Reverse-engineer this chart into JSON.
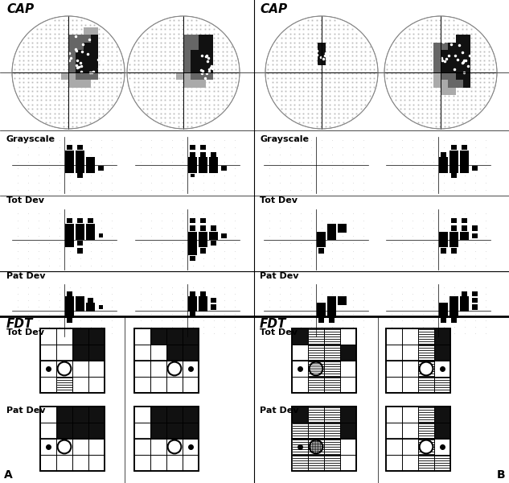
{
  "title": "CAP",
  "label_FDT": "FDT",
  "label_grayscale": "Grayscale",
  "label_totdev": "Tot Dev",
  "label_patdev": "Pat Dev",
  "label_A": "A",
  "label_B": "B",
  "bg_color": "#ffffff"
}
